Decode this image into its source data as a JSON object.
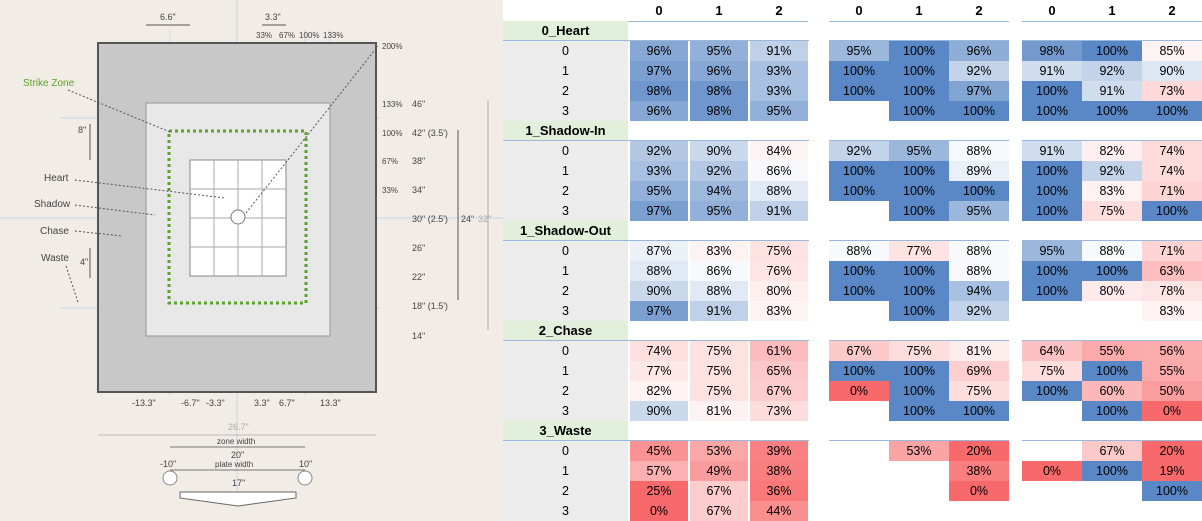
{
  "diagram": {
    "top_dims": [
      "6.6\"",
      "3.3\""
    ],
    "top_pcts": [
      "33%",
      "67%",
      "100%",
      "133%"
    ],
    "right_pct_200": "200%",
    "strike_zone_label": "Strike Zone",
    "zone_labels": [
      "Heart",
      "Shadow",
      "Chase",
      "Waste"
    ],
    "left_dims": [
      "8\"",
      "4\""
    ],
    "right_pcts": [
      "133%",
      "100%",
      "67%",
      "33%"
    ],
    "right_heights": [
      "46\"",
      "42\" (3.5')",
      "38\"",
      "34\"",
      "30\" (2.5')",
      "26\"",
      "22\"",
      "18\" (1.5')",
      "14\""
    ],
    "span_24": "24\"",
    "span_32": "32\"",
    "bottom_dims": [
      "-13.3\"",
      "-6.7\"",
      "-3.3\"",
      "3.3\"",
      "6.7\"",
      "13.3\""
    ],
    "width_26": "26.7\"",
    "zone_width_label": "zone width",
    "zone_width_value": "20\"",
    "plate_width_label": "plate width",
    "plate_width_value": "17\"",
    "ball_offsets": [
      "-10\"",
      "10\""
    ]
  },
  "table": {
    "col_headers": [
      "0",
      "1",
      "2"
    ],
    "categories": [
      "0_Heart",
      "1_Shadow-In",
      "1_Shadow-Out",
      "2_Chase",
      "3_Waste"
    ],
    "row_labels": [
      "0",
      "1",
      "2",
      "3"
    ],
    "groups": [
      [
        [
          "96%",
          "95%",
          "91%"
        ],
        [
          "97%",
          "96%",
          "93%"
        ],
        [
          "98%",
          "98%",
          "93%"
        ],
        [
          "96%",
          "98%",
          "95%"
        ],
        [
          "92%",
          "90%",
          "84%"
        ],
        [
          "93%",
          "92%",
          "86%"
        ],
        [
          "95%",
          "94%",
          "88%"
        ],
        [
          "97%",
          "95%",
          "91%"
        ],
        [
          "87%",
          "83%",
          "75%"
        ],
        [
          "88%",
          "86%",
          "76%"
        ],
        [
          "90%",
          "88%",
          "80%"
        ],
        [
          "97%",
          "91%",
          "83%"
        ],
        [
          "74%",
          "75%",
          "61%"
        ],
        [
          "77%",
          "75%",
          "65%"
        ],
        [
          "82%",
          "75%",
          "67%"
        ],
        [
          "90%",
          "81%",
          "73%"
        ],
        [
          "45%",
          "53%",
          "39%"
        ],
        [
          "57%",
          "49%",
          "38%"
        ],
        [
          "25%",
          "67%",
          "36%"
        ],
        [
          "0%",
          "67%",
          "44%"
        ]
      ],
      [
        [
          "95%",
          "100%",
          "96%"
        ],
        [
          "100%",
          "100%",
          "92%"
        ],
        [
          "100%",
          "100%",
          "97%"
        ],
        [
          "",
          "100%",
          "100%"
        ],
        [
          "92%",
          "95%",
          "88%"
        ],
        [
          "100%",
          "100%",
          "89%"
        ],
        [
          "100%",
          "100%",
          "100%"
        ],
        [
          "",
          "100%",
          "95%"
        ],
        [
          "88%",
          "77%",
          "88%"
        ],
        [
          "100%",
          "100%",
          "88%"
        ],
        [
          "100%",
          "100%",
          "94%"
        ],
        [
          "",
          "100%",
          "92%"
        ],
        [
          "67%",
          "75%",
          "81%"
        ],
        [
          "100%",
          "100%",
          "69%"
        ],
        [
          "0%",
          "100%",
          "75%"
        ],
        [
          "",
          "100%",
          "100%"
        ],
        [
          "",
          "53%",
          "20%"
        ],
        [
          "",
          "",
          "38%"
        ],
        [
          "",
          "",
          "0%"
        ],
        [
          "",
          "",
          ""
        ]
      ],
      [
        [
          "98%",
          "100%",
          "85%"
        ],
        [
          "91%",
          "92%",
          "90%"
        ],
        [
          "100%",
          "91%",
          "73%"
        ],
        [
          "100%",
          "100%",
          "100%"
        ],
        [
          "91%",
          "82%",
          "74%"
        ],
        [
          "100%",
          "92%",
          "74%"
        ],
        [
          "100%",
          "83%",
          "71%"
        ],
        [
          "100%",
          "75%",
          "100%"
        ],
        [
          "95%",
          "88%",
          "71%"
        ],
        [
          "100%",
          "100%",
          "63%"
        ],
        [
          "100%",
          "80%",
          "78%"
        ],
        [
          "",
          "",
          "83%"
        ],
        [
          "64%",
          "55%",
          "56%"
        ],
        [
          "75%",
          "100%",
          "55%"
        ],
        [
          "100%",
          "60%",
          "50%"
        ],
        [
          "",
          "100%",
          "0%"
        ],
        [
          "",
          "67%",
          "20%"
        ],
        [
          "0%",
          "100%",
          "19%"
        ],
        [
          "",
          "",
          "100%"
        ],
        [
          "",
          "",
          ""
        ]
      ]
    ]
  },
  "colors": {
    "high": "#5a87c5",
    "mid": "#ffffff",
    "low": "#f8696b",
    "category_bg": "#e2efda",
    "row_label_bg": "#ececec",
    "strike_zone_line": "#5ea22b"
  }
}
